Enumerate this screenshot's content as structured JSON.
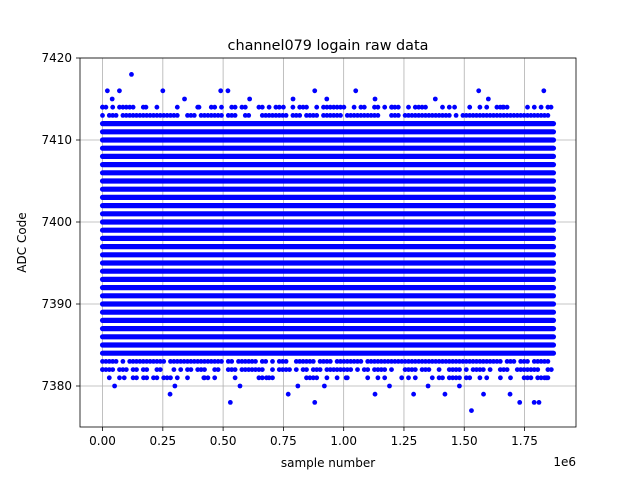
{
  "chart_data": {
    "type": "scatter",
    "title": "channel079 logain raw data",
    "xlabel": "sample number",
    "ylabel": "ADC Code",
    "x_offset_label": "1e6",
    "x_scale": 1000000,
    "xlim": [
      -0.0935,
      1.9635
    ],
    "ylim": [
      7375,
      7420
    ],
    "x_ticks": [
      {
        "value": 0.0,
        "label": "0.00"
      },
      {
        "value": 0.25,
        "label": "0.25"
      },
      {
        "value": 0.5,
        "label": "0.50"
      },
      {
        "value": 0.75,
        "label": "0.75"
      },
      {
        "value": 1.0,
        "label": "1.00"
      },
      {
        "value": 1.25,
        "label": "1.25"
      },
      {
        "value": 1.5,
        "label": "1.50"
      },
      {
        "value": 1.75,
        "label": "1.75"
      }
    ],
    "y_ticks": [
      {
        "value": 7380,
        "label": "7380"
      },
      {
        "value": 7390,
        "label": "7390"
      },
      {
        "value": 7400,
        "label": "7400"
      },
      {
        "value": 7410,
        "label": "7410"
      },
      {
        "value": 7420,
        "label": "7420"
      }
    ],
    "grid": true,
    "marker_color": "#0000ff",
    "series": [
      {
        "x_range": [
          0,
          1.87
        ],
        "dense_band": [
          7384,
          7412
        ],
        "points": [
          [
            0.0,
            7414
          ],
          [
            0.02,
            7416
          ],
          [
            0.04,
            7415
          ],
          [
            0.07,
            7416
          ],
          [
            0.12,
            7418
          ],
          [
            0.18,
            7414
          ],
          [
            0.25,
            7416
          ],
          [
            0.34,
            7415
          ],
          [
            0.4,
            7414
          ],
          [
            0.49,
            7416
          ],
          [
            0.52,
            7416
          ],
          [
            0.61,
            7415
          ],
          [
            0.75,
            7414
          ],
          [
            0.79,
            7415
          ],
          [
            0.88,
            7416
          ],
          [
            0.93,
            7415
          ],
          [
            1.05,
            7416
          ],
          [
            1.13,
            7415
          ],
          [
            1.2,
            7414
          ],
          [
            1.38,
            7415
          ],
          [
            1.46,
            7414
          ],
          [
            1.56,
            7416
          ],
          [
            1.6,
            7415
          ],
          [
            1.66,
            7414
          ],
          [
            1.83,
            7416
          ],
          [
            1.86,
            7414
          ],
          [
            0.0,
            7382
          ],
          [
            0.05,
            7380
          ],
          [
            0.09,
            7381
          ],
          [
            0.17,
            7381
          ],
          [
            0.28,
            7379
          ],
          [
            0.3,
            7380
          ],
          [
            0.42,
            7381
          ],
          [
            0.53,
            7378
          ],
          [
            0.57,
            7380
          ],
          [
            0.68,
            7381
          ],
          [
            0.77,
            7379
          ],
          [
            0.81,
            7380
          ],
          [
            0.88,
            7378
          ],
          [
            0.92,
            7380
          ],
          [
            1.01,
            7381
          ],
          [
            1.13,
            7379
          ],
          [
            1.19,
            7380
          ],
          [
            1.29,
            7379
          ],
          [
            1.35,
            7380
          ],
          [
            1.42,
            7379
          ],
          [
            1.48,
            7380
          ],
          [
            1.53,
            7377
          ],
          [
            1.58,
            7379
          ],
          [
            1.65,
            7381
          ],
          [
            1.69,
            7379
          ],
          [
            1.73,
            7378
          ],
          [
            1.79,
            7378
          ],
          [
            1.81,
            7378
          ],
          [
            1.84,
            7381
          ]
        ]
      }
    ]
  }
}
